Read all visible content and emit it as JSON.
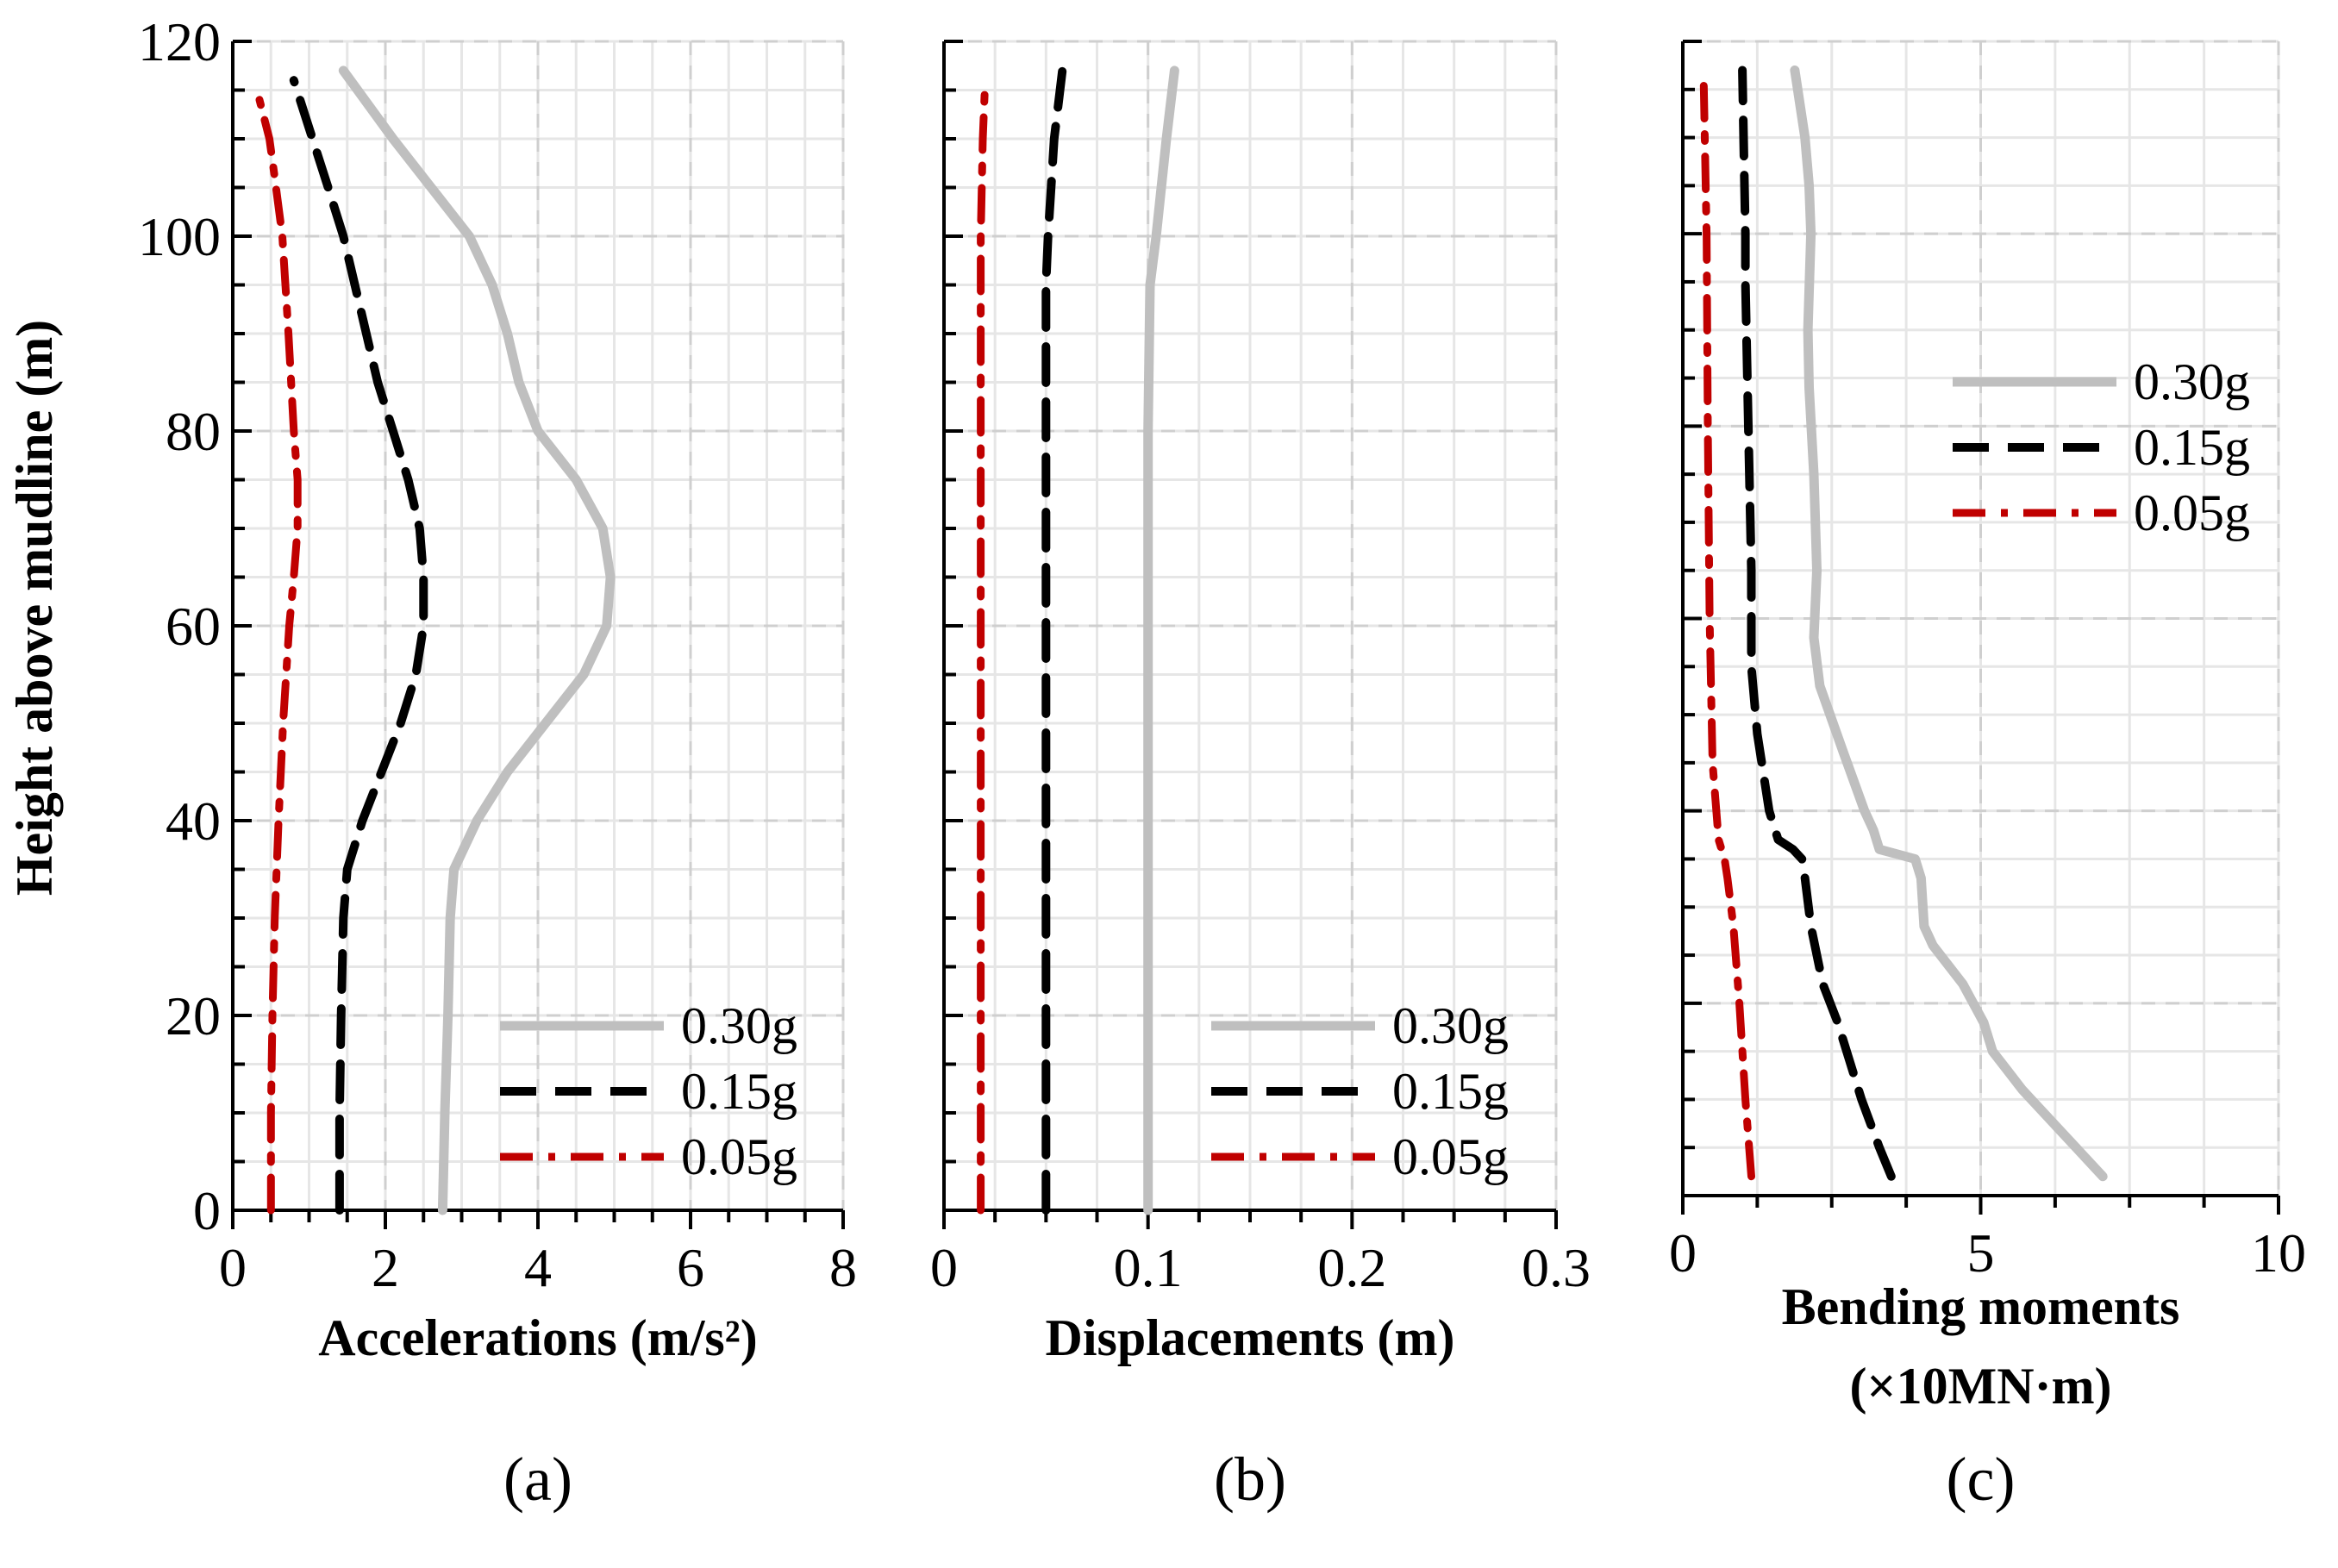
{
  "ylabel": "Height above  mudline  (m)",
  "yticks": [
    "0",
    "20",
    "40",
    "60",
    "80",
    "100",
    "120"
  ],
  "colors": {
    "0.30g": "#bfbfbf",
    "0.15g": "#000000",
    "0.05g": "#c00000"
  },
  "chart_data": [
    {
      "type": "line",
      "panel_label": "(a)",
      "xlabel": "Accelerations  (m/s²)",
      "ylabel": "Height above  mudline  (m)",
      "xlim": [
        0,
        8
      ],
      "ylim": [
        0,
        120
      ],
      "xticks": [
        "0",
        "2",
        "4",
        "6",
        "8"
      ],
      "grid": true,
      "legend_position": "bottom-right",
      "series": [
        {
          "name": "0.30g",
          "style": "solid",
          "color": "#bfbfbf",
          "x": [
            2.75,
            2.78,
            2.82,
            2.85,
            2.9,
            3.2,
            3.6,
            4.1,
            4.6,
            4.9,
            4.95,
            4.85,
            4.5,
            4.0,
            3.75,
            3.6,
            3.4,
            3.1,
            2.6,
            2.1,
            1.45
          ],
          "y": [
            0,
            10,
            20,
            30,
            35,
            40,
            45,
            50,
            55,
            60,
            65,
            70,
            75,
            80,
            85,
            90,
            95,
            100,
            105,
            110,
            117
          ]
        },
        {
          "name": "0.15g",
          "style": "dashed",
          "color": "#000000",
          "x": [
            1.4,
            1.4,
            1.42,
            1.45,
            1.5,
            1.7,
            1.95,
            2.2,
            2.4,
            2.5,
            2.5,
            2.45,
            2.3,
            2.1,
            1.9,
            1.75,
            1.6,
            1.45,
            1.25,
            0.8
          ],
          "y": [
            0,
            10,
            20,
            30,
            35,
            40,
            45,
            50,
            55,
            60,
            65,
            70,
            75,
            80,
            85,
            90,
            95,
            100,
            105,
            116
          ]
        },
        {
          "name": "0.05g",
          "style": "dashdot",
          "color": "#c00000",
          "x": [
            0.5,
            0.5,
            0.52,
            0.55,
            0.6,
            0.66,
            0.74,
            0.8,
            0.85,
            0.85,
            0.8,
            0.73,
            0.65,
            0.55,
            0.48,
            0.35
          ],
          "y": [
            0,
            10,
            20,
            30,
            40,
            50,
            60,
            65,
            70,
            75,
            80,
            90,
            100,
            106,
            110,
            114
          ]
        }
      ]
    },
    {
      "type": "line",
      "panel_label": "(b)",
      "xlabel": "Displacements  (m)",
      "xlim": [
        0,
        0.3
      ],
      "ylim": [
        0,
        120
      ],
      "xticks": [
        "0",
        "0.1",
        "0.2",
        "0.3"
      ],
      "grid": true,
      "legend_position": "bottom-right",
      "series": [
        {
          "name": "0.30g",
          "style": "solid",
          "color": "#bfbfbf",
          "x": [
            0.1,
            0.1,
            0.1,
            0.1,
            0.1,
            0.101,
            0.104,
            0.109,
            0.113
          ],
          "y": [
            0,
            20,
            40,
            60,
            80,
            95,
            100,
            110,
            117
          ]
        },
        {
          "name": "0.15g",
          "style": "dashed",
          "color": "#000000",
          "x": [
            0.05,
            0.05,
            0.05,
            0.05,
            0.05,
            0.05,
            0.051,
            0.054,
            0.058
          ],
          "y": [
            0,
            20,
            40,
            60,
            80,
            95,
            100,
            110,
            117
          ]
        },
        {
          "name": "0.05g",
          "style": "dashdot",
          "color": "#c00000",
          "x": [
            0.018,
            0.018,
            0.018,
            0.018,
            0.018,
            0.018,
            0.019,
            0.02
          ],
          "y": [
            0,
            20,
            40,
            60,
            80,
            100,
            110,
            115
          ]
        }
      ]
    },
    {
      "type": "line",
      "panel_label": "(c)",
      "xlabel": "Bending  moments",
      "xlabel_line2": "(×10MN·m)",
      "xlim": [
        0,
        10
      ],
      "ylim": [
        0,
        120
      ],
      "xticks": [
        "0",
        "5",
        "10"
      ],
      "grid": true,
      "legend_position": "top-right",
      "series": [
        {
          "name": "0.30g",
          "style": "solid",
          "color": "#bfbfbf",
          "x": [
            7.05,
            6.3,
            5.7,
            5.45,
            5.2,
            5.05,
            4.7,
            4.2,
            4.05,
            4.0,
            3.9,
            3.3,
            3.2,
            3.05,
            2.7,
            2.3,
            2.2,
            2.25,
            2.2,
            2.12,
            2.1,
            2.15,
            2.12,
            2.05,
            1.88
          ],
          "y": [
            2,
            7,
            11,
            13,
            15,
            18,
            22,
            26,
            28,
            33,
            35,
            36,
            38,
            40,
            46,
            53,
            58,
            65,
            75,
            84,
            90,
            100,
            105,
            110,
            117
          ]
        },
        {
          "name": "0.15g",
          "style": "dashed",
          "color": "#000000",
          "x": [
            3.5,
            3.3,
            3.0,
            2.6,
            2.35,
            2.15,
            2.05,
            2.0,
            1.85,
            1.6,
            1.45,
            1.25,
            1.15,
            1.15,
            1.1,
            1.05,
            1.05,
            1.02,
            1.0
          ],
          "y": [
            2,
            5,
            10,
            18,
            22,
            28,
            33,
            35,
            36,
            37,
            40,
            48,
            55,
            65,
            80,
            95,
            100,
            110,
            117
          ]
        },
        {
          "name": "0.05g",
          "style": "dashdot",
          "color": "#c00000",
          "x": [
            1.15,
            1.05,
            0.95,
            0.85,
            0.75,
            0.7,
            0.6,
            0.5,
            0.45,
            0.42,
            0.4,
            0.35
          ],
          "y": [
            2,
            10,
            20,
            28,
            33,
            35,
            37,
            45,
            60,
            80,
            100,
            116
          ]
        }
      ]
    }
  ]
}
